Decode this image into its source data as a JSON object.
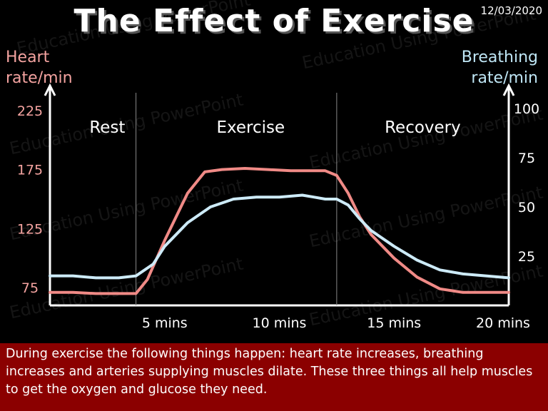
{
  "header": {
    "title": "The Effect of Exercise",
    "date": "12/03/2020"
  },
  "watermark": "Education Using PowerPoint",
  "chart_data": {
    "type": "line",
    "title": "The Effect of Exercise",
    "xlabel": "",
    "ylabel": "Heart rate/min",
    "ylabel_right": "Breathing rate/min",
    "xlim": [
      0,
      20
    ],
    "ylim": [
      60,
      240
    ],
    "ylim_right": [
      0,
      108
    ],
    "x_ticks": [
      {
        "value": 5,
        "label": "5 mins"
      },
      {
        "value": 10,
        "label": "10 mins"
      },
      {
        "value": 15,
        "label": "15 mins"
      },
      {
        "value": 20,
        "label": "20 mins"
      }
    ],
    "y_ticks_left": [
      75,
      125,
      175,
      225
    ],
    "y_ticks_right": [
      25,
      50,
      75,
      100
    ],
    "phases": [
      {
        "label": "Rest",
        "start": 0,
        "end": 5
      },
      {
        "label": "Exercise",
        "start": 5,
        "end": 12.5
      },
      {
        "label": "Recovery",
        "start": 12.5,
        "end": 20
      }
    ],
    "dividers": [
      3.75,
      12.5
    ],
    "grid": false,
    "legend": "none",
    "series": [
      {
        "axis": "left",
        "color": "#f08a86",
        "x": [
          0,
          1,
          2,
          3,
          3.75,
          4.25,
          5,
          6,
          6.75,
          7.5,
          8.5,
          9.5,
          10.5,
          11.5,
          12,
          12.5,
          13,
          13.5,
          14,
          15,
          16,
          17,
          18,
          19,
          20
        ],
        "y": [
          71,
          71,
          70,
          70,
          70,
          82,
          115,
          155,
          173,
          175,
          176,
          175,
          174,
          174,
          174,
          170,
          155,
          135,
          120,
          100,
          84,
          74,
          71,
          71,
          71
        ]
      },
      {
        "axis": "right",
        "color": "#cdebf8",
        "x": [
          0,
          1,
          2,
          3,
          3.75,
          4.5,
          5,
          6,
          7,
          8,
          9,
          10,
          11,
          11.5,
          12,
          12.5,
          13,
          13.5,
          14,
          15,
          16,
          17,
          18,
          19,
          20
        ],
        "y": [
          15,
          15,
          14,
          14,
          15,
          21,
          30,
          42,
          50,
          54,
          55,
          55,
          56,
          55,
          54,
          54,
          51,
          44,
          38,
          30,
          23,
          18,
          16,
          15,
          14
        ]
      }
    ]
  },
  "caption": "During exercise the following things happen: heart rate increases, breathing increases and arteries supplying muscles dilate.  These three things all help muscles to get the oxygen and glucose they need."
}
